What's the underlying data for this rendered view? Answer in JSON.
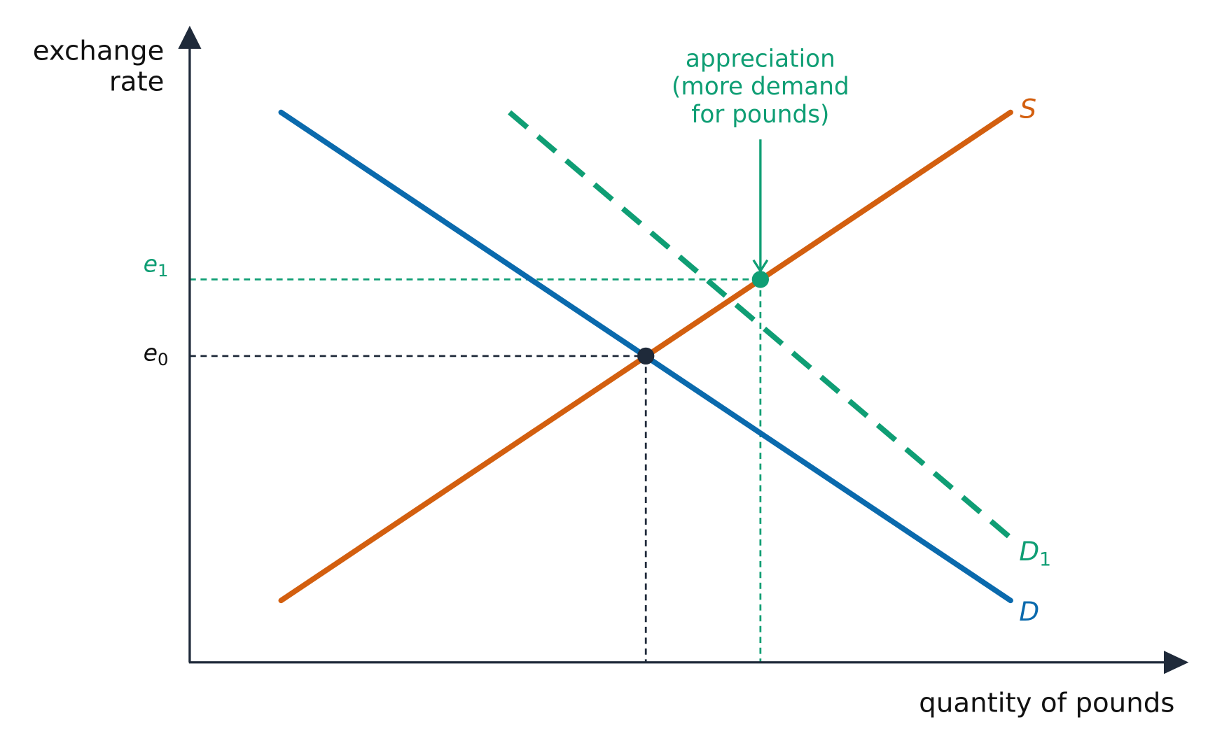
{
  "y_axis_label": {
    "lines": [
      "exchange",
      "rate"
    ]
  },
  "x_axis_label": "quantity of pounds",
  "annotation": {
    "lines": [
      "appreciation",
      "(more demand",
      "for pounds)"
    ]
  },
  "curves": {
    "supply": {
      "label": "S"
    },
    "demand": {
      "label": "D"
    },
    "new_demand": {
      "label": "D",
      "subscript": "1"
    }
  },
  "levels": {
    "e0": {
      "label": "e",
      "subscript": "0"
    },
    "e1": {
      "label": "e",
      "subscript": "1"
    }
  }
}
